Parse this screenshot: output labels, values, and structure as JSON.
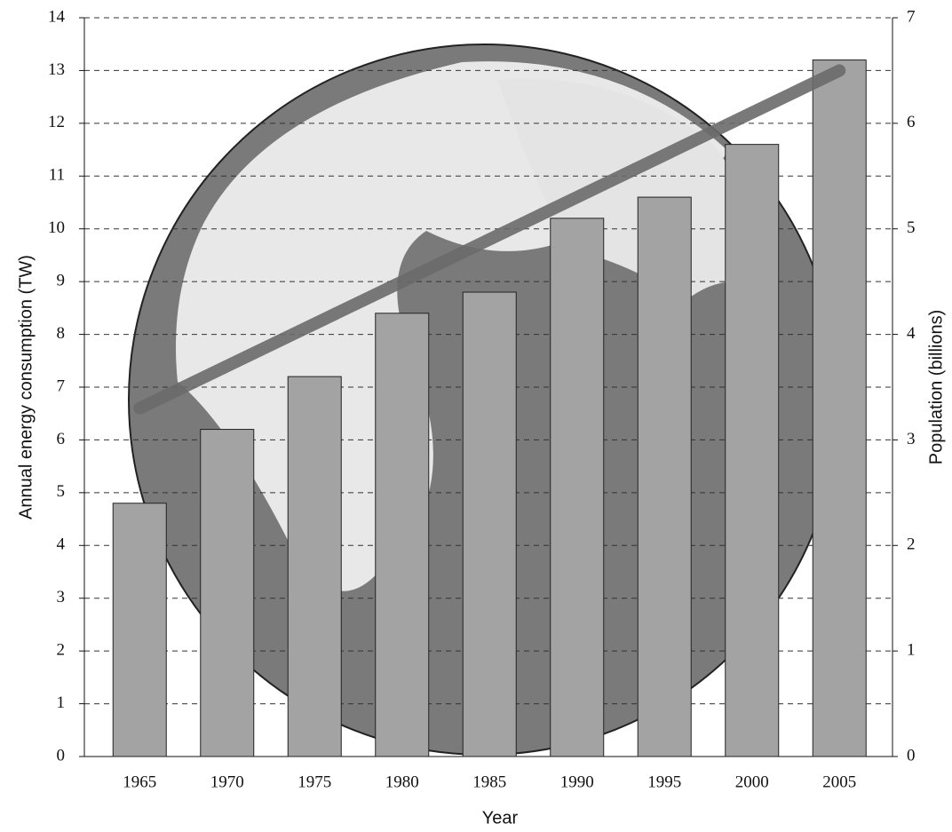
{
  "chart_data": {
    "type": "bar",
    "categories": [
      "1965",
      "1970",
      "1975",
      "1980",
      "1985",
      "1990",
      "1995",
      "2000",
      "2005"
    ],
    "x_label": "Year",
    "y_label": "Annual energy consumption (TW)",
    "y2_label": "Population (billions)",
    "ylim": [
      0,
      14
    ],
    "yticks": [
      0,
      1,
      2,
      3,
      4,
      5,
      6,
      7,
      8,
      9,
      10,
      11,
      12,
      13,
      14
    ],
    "y2lim": [
      0,
      7
    ],
    "y2ticks": [
      0,
      1,
      2,
      3,
      4,
      5,
      6,
      7
    ],
    "grid": true,
    "series": [
      {
        "type": "bar",
        "color": "#a3a3a3",
        "values": [
          4.8,
          6.2,
          7.2,
          8.4,
          8.8,
          10.2,
          10.6,
          11.6,
          13.2
        ]
      },
      {
        "type": "line",
        "axis": "y2",
        "color": "#6a6a6a",
        "values": [
          3.3,
          3.7,
          4.1,
          4.5,
          4.9,
          5.3,
          5.7,
          6.1,
          6.5
        ]
      }
    ]
  }
}
